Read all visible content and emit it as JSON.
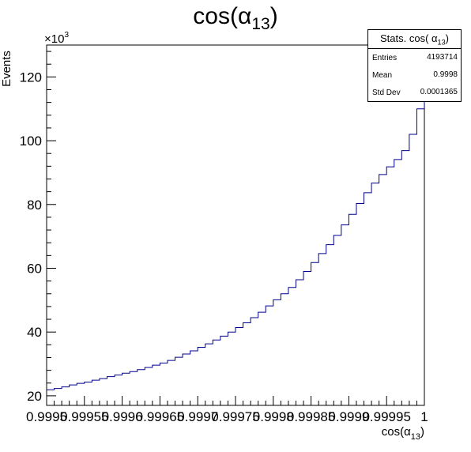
{
  "chart_data": {
    "type": "histogram",
    "title": "cos(α13)",
    "title_base": "cos(α",
    "title_sub": "13",
    "title_end": ")",
    "xlabel_base": "cos(α",
    "xlabel_sub": "13",
    "xlabel_end": ")",
    "ylabel": "Events",
    "y_multiplier": "×10",
    "y_multiplier_exp": "3",
    "xlim": [
      0.9995,
      1.0
    ],
    "ylim": [
      17,
      130
    ],
    "x_tick_labels": [
      "0.9995",
      "0.99955",
      "0.9996",
      "0.99965",
      "0.9997",
      "0.99975",
      "0.9998",
      "0.99985",
      "0.9999",
      "0.99995",
      "1"
    ],
    "y_ticks": [
      20,
      40,
      60,
      80,
      100,
      120
    ],
    "bin_edges_start": 0.9995,
    "bin_width": 1e-05,
    "bin_values": [
      21.9,
      22.3,
      22.8,
      23.4,
      23.9,
      24.3,
      24.9,
      25.4,
      26.0,
      26.5,
      27.1,
      27.6,
      28.2,
      28.9,
      29.6,
      30.3,
      31.1,
      32.1,
      33.1,
      34.1,
      35.2,
      36.3,
      37.5,
      38.7,
      40.0,
      41.4,
      42.9,
      44.5,
      46.2,
      48.2,
      50.1,
      52.0,
      54.0,
      56.4,
      59.0,
      61.8,
      64.6,
      67.4,
      70.3,
      73.6,
      76.9,
      80.3,
      83.7,
      86.7,
      89.4,
      91.8,
      94.1,
      96.9,
      102.0,
      110.0,
      114.0
    ],
    "line_color": "#00008b",
    "stats": {
      "header_base": "Stats. cos( α",
      "header_sub": "13",
      "header_end": ")",
      "rows": [
        {
          "label": "Entries",
          "value": "4193714"
        },
        {
          "label": "Mean",
          "value": "0.9998"
        },
        {
          "label": "Std Dev",
          "value": "0.0001365"
        }
      ]
    }
  }
}
